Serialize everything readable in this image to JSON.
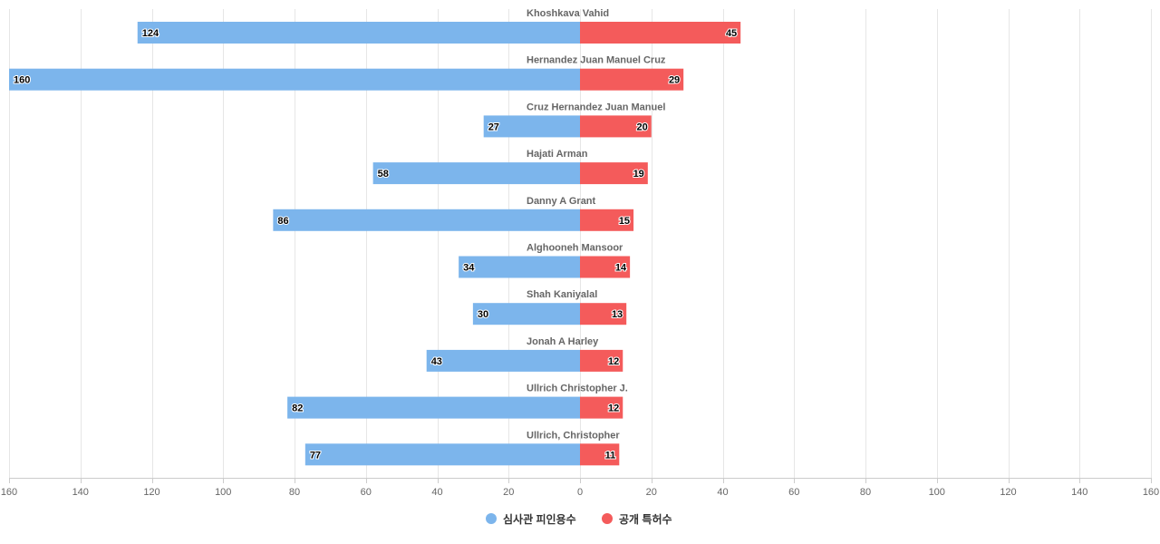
{
  "chart_data": {
    "type": "bar",
    "orientation": "horizontal",
    "layout": "diverging",
    "categories": [
      "Khoshkava Vahid",
      "Hernandez Juan Manuel Cruz",
      "Cruz Hernandez Juan Manuel",
      "Hajati Arman",
      "Danny A Grant",
      "Alghooneh Mansoor",
      "Shah Kaniyalal",
      "Jonah A Harley",
      "Ullrich Christopher J.",
      "Ullrich, Christopher"
    ],
    "series": [
      {
        "name": "심사관 피인용수",
        "side": "left",
        "color": "#7cb5ec",
        "values": [
          124,
          160,
          27,
          58,
          86,
          34,
          30,
          43,
          82,
          77
        ]
      },
      {
        "name": "공개 특허수",
        "side": "right",
        "color": "#f45b5b",
        "values": [
          45,
          29,
          20,
          19,
          15,
          14,
          13,
          12,
          12,
          11
        ]
      }
    ],
    "xlim": [
      -160,
      160
    ],
    "x_ticks": [
      -160,
      -140,
      -120,
      -100,
      -80,
      -60,
      -40,
      -20,
      0,
      20,
      40,
      60,
      80,
      100,
      120,
      140,
      160
    ],
    "tick_labels": [
      "160",
      "140",
      "120",
      "100",
      "80",
      "60",
      "40",
      "20",
      "0",
      "20",
      "40",
      "60",
      "80",
      "100",
      "120",
      "140",
      "160"
    ],
    "grid": true,
    "data_labels": true,
    "legend_position": "bottom-center",
    "title": "",
    "xlabel": "",
    "ylabel": ""
  }
}
